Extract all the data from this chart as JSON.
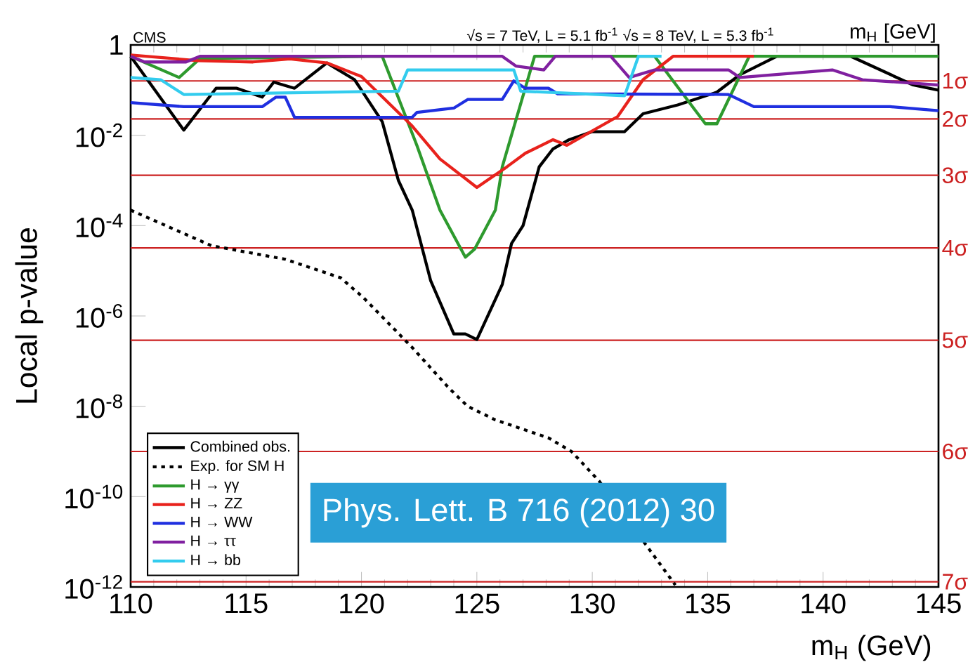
{
  "chart_data": {
    "type": "line",
    "ylabel": "Local p-value",
    "xlabel": "m$_{H}$ (GeV)",
    "log": "y",
    "legend": "bottom left",
    "xlim": [
      110,
      145
    ],
    "xticks": [
      110,
      115,
      120,
      125,
      130,
      135,
      140,
      145
    ],
    "ylim": [
      1e-12,
      1
    ],
    "yticks": [
      1,
      {
        "value": 0.01,
        "label": "10$^{-2}$"
      },
      {
        "value": 0.0001,
        "label": "10$^{-4}$"
      },
      {
        "value": 1e-06,
        "label": "10$^{-6}$"
      },
      {
        "value": 1e-08,
        "label": "10$^{-8}$"
      },
      {
        "value": 1e-10,
        "label": "10$^{-10}$"
      },
      {
        "value": 1e-12,
        "label": "10$^{-12}$"
      }
    ],
    "series": [
      {
        "name": "Combined  obs.",
        "color": "#000000",
        "line_style": "solid",
        "x": [
          110,
          112.3,
          113.7,
          114.6,
          115.7,
          116.2,
          117.1,
          118.5,
          119.7,
          120.9,
          121.6,
          122.2,
          123.0,
          124.0,
          124.5,
          125.0,
          126.1,
          126.5,
          127.0,
          127.7,
          128.3,
          129.0,
          130.0,
          131.4,
          132.2,
          133.7,
          135.4,
          136.4,
          138.0,
          141.2,
          143.9,
          145
        ],
        "values": [
          0.56,
          0.013,
          0.11,
          0.11,
          0.07,
          0.15,
          0.11,
          0.4,
          0.17,
          0.02,
          0.001,
          0.00022,
          6e-06,
          4e-07,
          4e-07,
          3e-07,
          5e-06,
          4e-05,
          0.0001,
          0.002,
          0.005,
          0.008,
          0.012,
          0.012,
          0.03,
          0.047,
          0.09,
          0.22,
          0.56,
          0.56,
          0.13,
          0.1
        ]
      },
      {
        "name": "Exp. for SM H",
        "color": "#000000",
        "line_style": "dotted",
        "x": [
          110,
          113.5,
          116.7,
          119.1,
          120.1,
          122.2,
          123.8,
          124.6,
          125.8,
          128.1,
          129.1,
          130.3,
          132.8,
          133.6
        ],
        "values": [
          0.00022,
          3.6e-05,
          1.8e-05,
          7e-06,
          2.5e-06,
          2e-07,
          2.5e-08,
          1e-08,
          5e-09,
          2e-09,
          1e-09,
          2.2e-10,
          4e-12,
          1.1e-12
        ]
      },
      {
        "name": "H → γγ",
        "color": "#2e9a2e",
        "line_style": "solid",
        "x": [
          110,
          112.1,
          113.0,
          120.9,
          122.4,
          123.4,
          124.5,
          124.9,
          125.8,
          126.1,
          127.5,
          132.7,
          134.9,
          135.4,
          136.8,
          145
        ],
        "values": [
          0.56,
          0.19,
          0.5,
          0.56,
          0.006,
          0.00022,
          2e-05,
          3e-05,
          0.00022,
          0.002,
          0.56,
          0.56,
          0.018,
          0.018,
          0.56,
          0.56
        ]
      },
      {
        "name": "H → ZZ",
        "color": "#e8221c",
        "line_style": "solid",
        "x": [
          110,
          112.9,
          115.3,
          116.9,
          118.5,
          120.0,
          122.2,
          123.4,
          125.0,
          126.3,
          127.1,
          128.3,
          128.9,
          131.1,
          132.2,
          133.5,
          137.0
        ],
        "values": [
          0.6,
          0.45,
          0.42,
          0.49,
          0.4,
          0.2,
          0.016,
          0.003,
          0.0007,
          0.002,
          0.004,
          0.008,
          0.006,
          0.026,
          0.17,
          0.56,
          0.56
        ]
      },
      {
        "name": "H → WW",
        "color": "#1f2fe0",
        "line_style": "solid",
        "x": [
          110,
          112.3,
          115.7,
          116.3,
          116.7,
          117.1,
          122.2,
          122.4,
          124.0,
          124.6,
          126.1,
          126.6,
          127.1,
          128.1,
          128.5,
          135.9,
          137.0,
          142.9,
          145
        ],
        "values": [
          0.053,
          0.043,
          0.043,
          0.07,
          0.07,
          0.025,
          0.025,
          0.032,
          0.04,
          0.062,
          0.062,
          0.16,
          0.11,
          0.11,
          0.083,
          0.08,
          0.043,
          0.043,
          0.035
        ]
      },
      {
        "name": "H → ττ",
        "color": "#8020a0",
        "line_style": "solid",
        "x": [
          110,
          110.6,
          112.4,
          113.0,
          126.1,
          126.7,
          127.9,
          128.4,
          130.8,
          131.6,
          132.7,
          135.9,
          136.4,
          140.4,
          141.7,
          145
        ],
        "values": [
          0.56,
          0.42,
          0.42,
          0.56,
          0.56,
          0.34,
          0.28,
          0.56,
          0.56,
          0.19,
          0.28,
          0.28,
          0.19,
          0.28,
          0.17,
          0.13
        ]
      },
      {
        "name": "H → bb",
        "color": "#33ccee",
        "line_style": "solid",
        "x": [
          110,
          111.3,
          112.3,
          121.6,
          122.0,
          126.6,
          126.9,
          131.4,
          132.0,
          133.0
        ],
        "values": [
          0.19,
          0.17,
          0.08,
          0.095,
          0.28,
          0.28,
          0.095,
          0.075,
          0.56,
          0.56
        ]
      }
    ],
    "ref_lines": [
      {
        "axis": "y",
        "value": 0.16,
        "label": "1σ",
        "color": "#cc2222"
      },
      {
        "axis": "y",
        "value": 0.023,
        "label": "2σ",
        "color": "#cc2222"
      },
      {
        "axis": "y",
        "value": 0.0013,
        "label": "3σ",
        "color": "#cc2222"
      },
      {
        "axis": "y",
        "value": 3.2e-05,
        "label": "4σ",
        "color": "#cc2222"
      },
      {
        "axis": "y",
        "value": 2.9e-07,
        "label": "5σ",
        "color": "#cc2222"
      },
      {
        "axis": "y",
        "value": 1e-09,
        "label": "6σ",
        "color": "#cc2222"
      },
      {
        "axis": "y",
        "value": 1.3e-12,
        "label": "7σ",
        "color": "#cc2222"
      }
    ],
    "annotations": [
      "CMS",
      "√s = 7 TeV, L = 5.1 fb$^{-1}$  √s = 8 TeV, L = 5.3 fb$^{-1}$",
      "m$_{H}$ [GeV]",
      "Phys. Lett. B 716 (2012) 30"
    ]
  }
}
